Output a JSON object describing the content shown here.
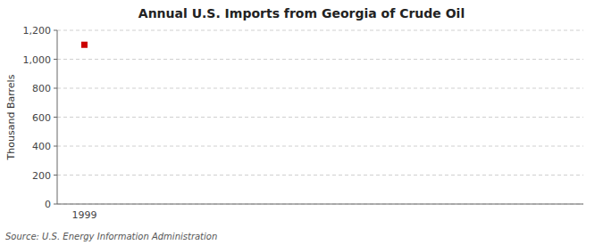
{
  "chart_data": {
    "type": "scatter",
    "title": "Annual U.S. Imports from Georgia of Crude Oil",
    "y_label": "Thousand Barrels",
    "annotations": [
      "Source: U.S. Energy Information Administration"
    ],
    "x": [
      1999
    ],
    "values": [
      1100
    ],
    "color": "#cc0000",
    "marker": "square",
    "xlim": [
      1998.4,
      2010
    ],
    "xticks": [
      1999
    ],
    "ylim": [
      0,
      1200
    ],
    "yticks": [
      0,
      200,
      400,
      600,
      800,
      {
        "value": 1000,
        "label": "1,000"
      },
      {
        "value": 1200,
        "label": "1,200"
      }
    ],
    "grid": true
  }
}
